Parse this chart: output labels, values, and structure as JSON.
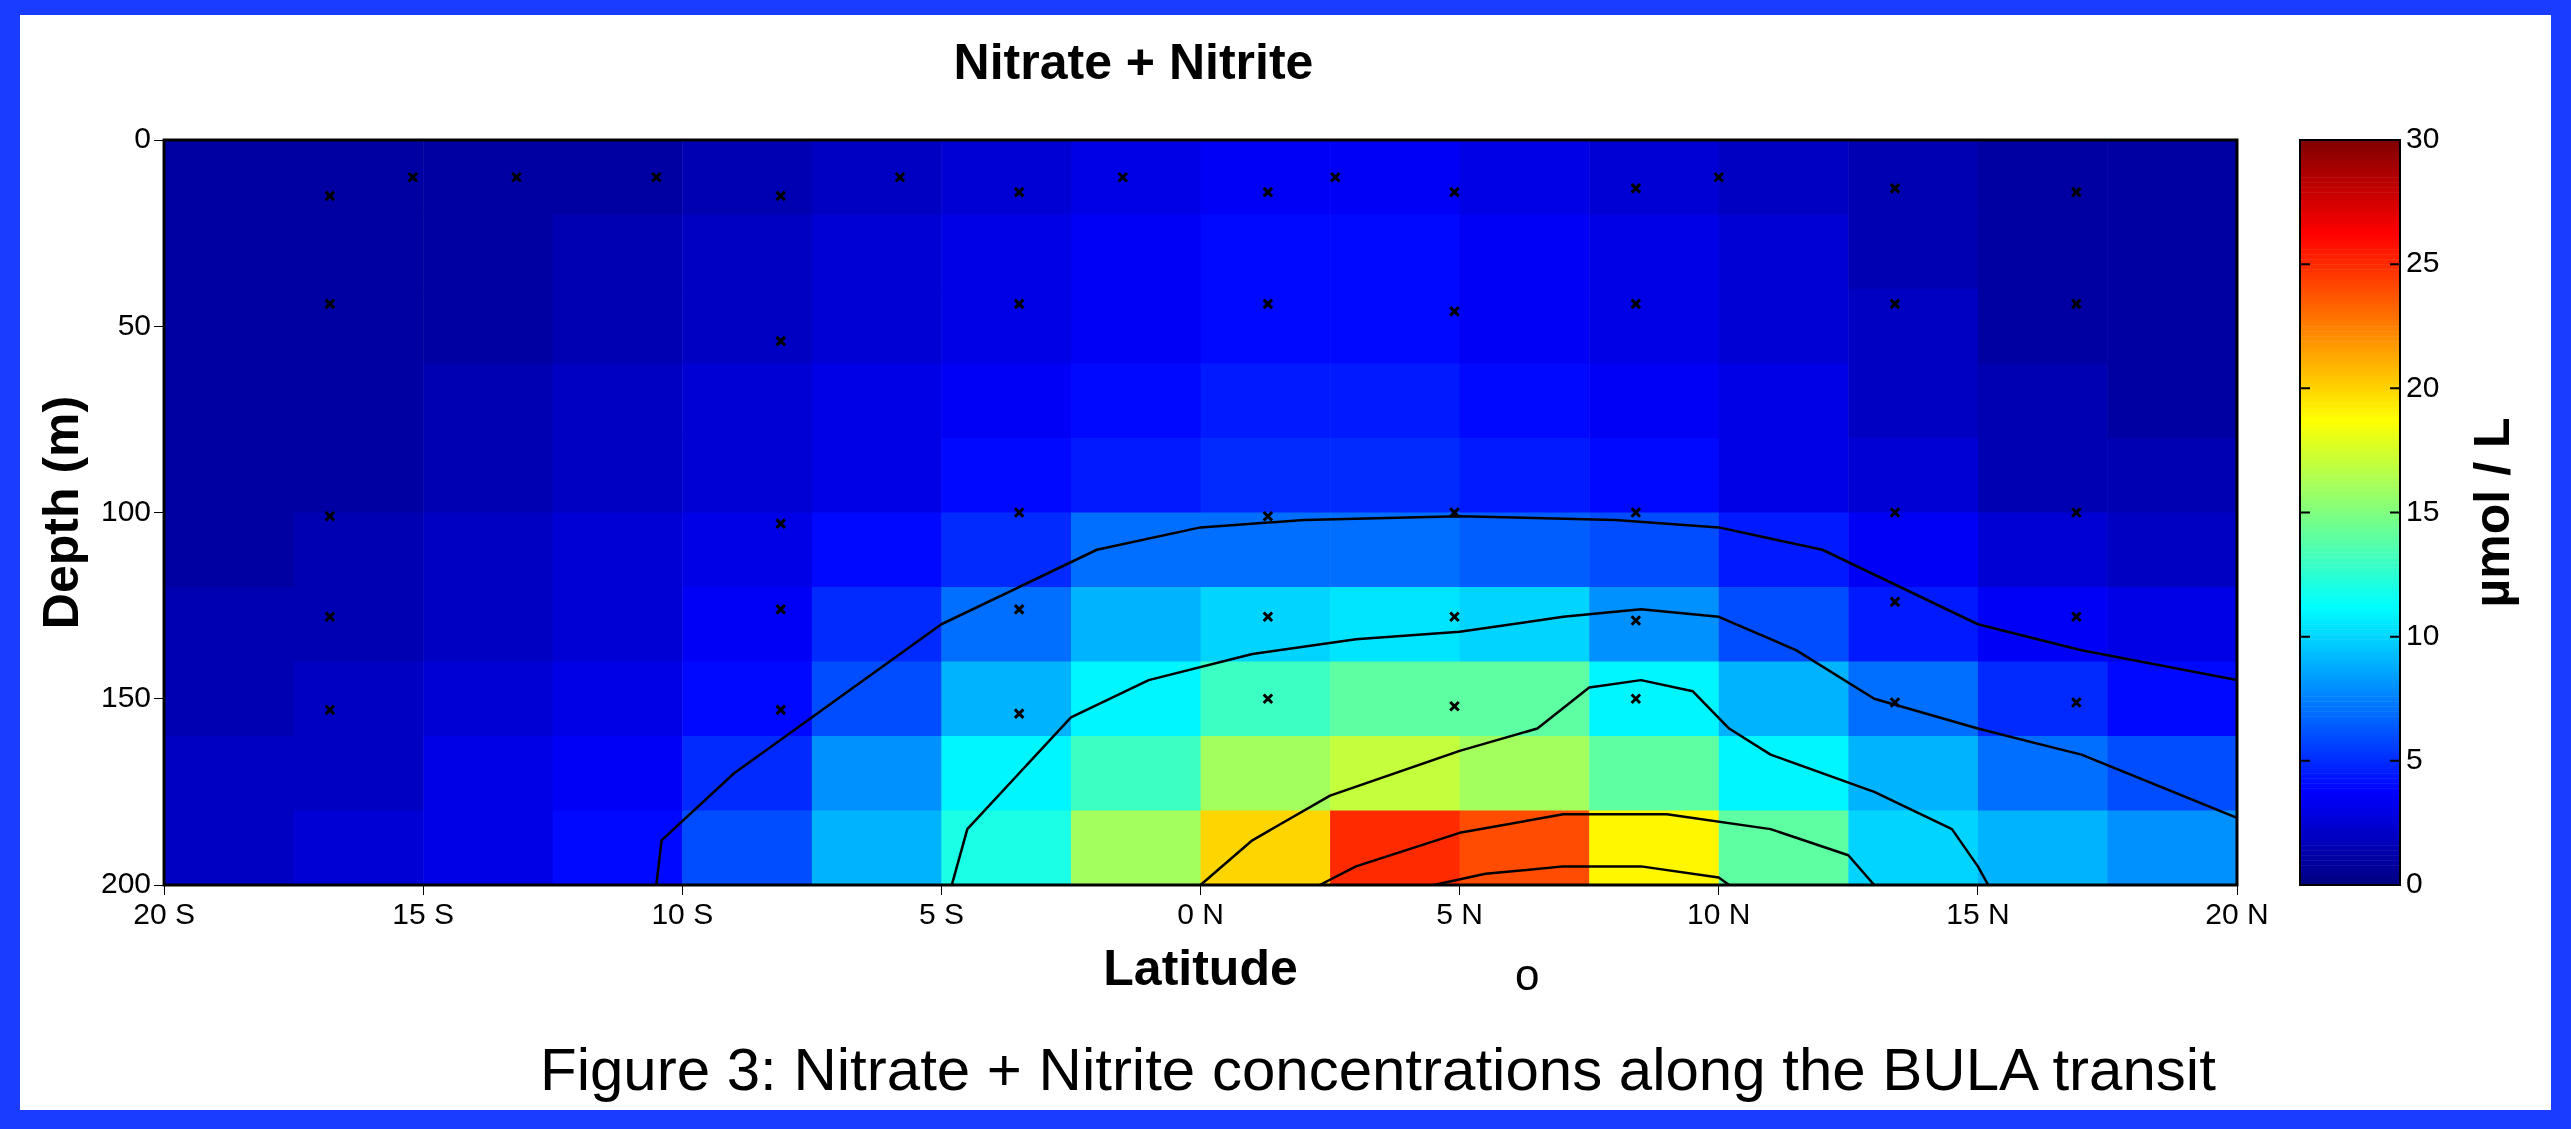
{
  "chart_data": {
    "type": "heatmap",
    "title": "Nitrate + Nitrite",
    "xlabel": "Latitude",
    "ylabel": "Depth (m)",
    "clabel": "µmol / L",
    "annotations": [
      "o",
      "Figure 3: Nitrate + Nitrite concentrations along the BULA transit"
    ],
    "xlim": [
      -20,
      20
    ],
    "xticks": [
      {
        "value": -20,
        "label": "20 S"
      },
      {
        "value": -15,
        "label": "15 S"
      },
      {
        "value": -10,
        "label": "10 S"
      },
      {
        "value": -5,
        "label": "5 S"
      },
      {
        "value": 0,
        "label": "0 N"
      },
      {
        "value": 5,
        "label": "5 N"
      },
      {
        "value": 10,
        "label": "10 N"
      },
      {
        "value": 15,
        "label": "15 N"
      },
      {
        "value": 20,
        "label": "20 N"
      }
    ],
    "ylim": [
      200,
      0
    ],
    "yticks": [
      0,
      50,
      100,
      150,
      200
    ],
    "clim": [
      0,
      30
    ],
    "cticks": [
      0,
      5,
      10,
      15,
      20,
      25,
      30
    ],
    "cells": [
      [
        1,
        1,
        1,
        1,
        1.5,
        2,
        2.5,
        3,
        3.5,
        3.5,
        3,
        2.5,
        2,
        1.5,
        1,
        1
      ],
      [
        1,
        1,
        1,
        1.5,
        2,
        2.5,
        3,
        3.5,
        4,
        4,
        3.5,
        3,
        2.5,
        1.5,
        1,
        1
      ],
      [
        1,
        1,
        1,
        1.5,
        2,
        2.5,
        3,
        3.5,
        4,
        4,
        3.5,
        3,
        2.5,
        2,
        1,
        1
      ],
      [
        1,
        1,
        1.5,
        2,
        2.5,
        3,
        3.5,
        4,
        4.5,
        4.5,
        4,
        3.5,
        3,
        2,
        1.5,
        1
      ],
      [
        1,
        1,
        1.5,
        2,
        2.5,
        3,
        4,
        4.5,
        5,
        5,
        4.5,
        4,
        3,
        2.5,
        1.5,
        1.5
      ],
      [
        1,
        1.5,
        2,
        2.5,
        3,
        4,
        5,
        7,
        7,
        7,
        6.5,
        6,
        4.5,
        3.5,
        2.5,
        2
      ],
      [
        1.5,
        1.5,
        2,
        2.5,
        3.5,
        5,
        7,
        9,
        10,
        10.5,
        10,
        8,
        6,
        4.5,
        3.5,
        3
      ],
      [
        1.5,
        2,
        2.5,
        3,
        4,
        6,
        9,
        11,
        13,
        14,
        14,
        11,
        9,
        7,
        5,
        4
      ],
      [
        2,
        2,
        3,
        3.5,
        5,
        8,
        11,
        13,
        16,
        17,
        16,
        14,
        11,
        9,
        7,
        6
      ],
      [
        2,
        2.5,
        3,
        4,
        6,
        9,
        12,
        16,
        20,
        25,
        24,
        19,
        14,
        10,
        9,
        8
      ]
    ],
    "grid": false,
    "series": [
      {
        "type": "scatter",
        "color": "#000000",
        "marker": "cross",
        "x": [
          -16.8,
          -16.8,
          -16.8,
          -16.8,
          -16.8,
          -15.2,
          -13.2,
          -10.5,
          -8.1,
          -8.1,
          -8.1,
          -8.1,
          -8.1,
          -5.8,
          -3.5,
          -3.5,
          -3.5,
          -3.5,
          -3.5,
          -1.5,
          1.3,
          1.3,
          1.3,
          1.3,
          1.3,
          2.6,
          4.9,
          4.9,
          4.9,
          4.9,
          4.9,
          8.4,
          8.4,
          8.4,
          8.4,
          8.4,
          10,
          13.4,
          13.4,
          13.4,
          13.4,
          13.4,
          16.9,
          16.9,
          16.9,
          16.9,
          16.9
        ],
        "values": [
          15,
          44,
          101,
          128,
          153,
          10,
          10,
          10,
          15,
          54,
          103,
          126,
          153,
          10,
          14,
          44,
          100,
          126,
          154,
          10,
          14,
          44,
          101,
          128,
          150,
          10,
          14,
          46,
          100,
          128,
          152,
          13,
          44,
          100,
          129,
          150,
          10,
          13,
          44,
          100,
          124,
          151,
          14,
          44,
          100,
          128,
          151
        ]
      },
      {
        "type": "line",
        "color": "#000000",
        "x": [
          -10.5,
          -10.4,
          -9,
          -7,
          -5,
          -3.5,
          -2,
          0,
          2,
          5,
          8,
          10,
          12,
          13.5,
          15,
          17,
          20
        ],
        "values": [
          200,
          188,
          170,
          150,
          130,
          120,
          110,
          104,
          102,
          101,
          102,
          104,
          110,
          120,
          130,
          137,
          145
        ]
      },
      {
        "type": "line",
        "color": "#000000",
        "x": [
          -4.8,
          -4.5,
          -3.5,
          -2.5,
          -1,
          1,
          3,
          5,
          7,
          8.5,
          10,
          11.5,
          13,
          15,
          17,
          20
        ],
        "values": [
          200,
          185,
          170,
          155,
          145,
          138,
          134,
          132,
          128,
          126,
          128,
          137,
          150,
          158,
          165,
          182
        ]
      },
      {
        "type": "line",
        "color": "#000000",
        "x": [
          0,
          1,
          2.5,
          5,
          6.5,
          7.5,
          8.5,
          9.5,
          10.2,
          11,
          13,
          14.5,
          15,
          15.2
        ],
        "values": [
          200,
          188,
          176,
          164,
          158,
          147,
          145,
          148,
          158,
          165,
          175,
          185,
          195,
          200
        ]
      },
      {
        "type": "line",
        "color": "#000000",
        "x": [
          2.3,
          3,
          5,
          7,
          9,
          11,
          12.5,
          13
        ],
        "values": [
          200,
          195,
          186,
          181,
          181,
          185,
          192,
          200
        ]
      },
      {
        "type": "line",
        "color": "#000000",
        "x": [
          4.5,
          5.5,
          7,
          8.5,
          10,
          10.2
        ],
        "values": [
          200,
          197,
          195,
          195,
          198,
          200
        ]
      }
    ]
  }
}
